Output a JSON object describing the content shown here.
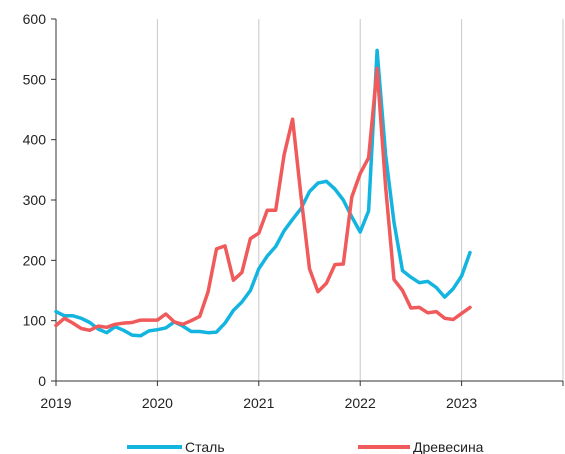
{
  "chart_data": {
    "type": "line",
    "title": "",
    "xlabel": "",
    "ylabel": "",
    "xlim": [
      2019,
      2024
    ],
    "ylim": [
      0,
      600
    ],
    "x_ticks": [
      "2019",
      "2020",
      "2021",
      "2022",
      "2023"
    ],
    "y_ticks": [
      "0",
      "100",
      "200",
      "300",
      "400",
      "500",
      "600"
    ],
    "grid": "vertical",
    "legend": "bottom",
    "series": [
      {
        "name": "Сталь",
        "color": "#13b5e0",
        "x": [
          2019.0,
          2019.083,
          2019.167,
          2019.25,
          2019.333,
          2019.417,
          2019.5,
          2019.583,
          2019.667,
          2019.75,
          2019.833,
          2019.917,
          2020.0,
          2020.083,
          2020.167,
          2020.25,
          2020.333,
          2020.417,
          2020.5,
          2020.583,
          2020.667,
          2020.75,
          2020.833,
          2020.917,
          2021.0,
          2021.083,
          2021.167,
          2021.25,
          2021.333,
          2021.417,
          2021.5,
          2021.583,
          2021.667,
          2021.75,
          2021.833,
          2021.917,
          2022.0,
          2022.083,
          2022.167,
          2022.25,
          2022.333,
          2022.417,
          2022.5,
          2022.583,
          2022.667,
          2022.75,
          2022.833,
          2022.917,
          2023.0,
          2023.083
        ],
        "y": [
          115,
          108,
          108,
          104,
          97,
          86,
          80,
          90,
          84,
          76,
          75,
          83,
          85,
          88,
          98,
          91,
          82,
          82,
          80,
          81,
          96,
          117,
          131,
          150,
          186,
          207,
          223,
          249,
          268,
          286,
          314,
          328,
          331,
          318,
          300,
          272,
          247,
          282,
          548,
          375,
          263,
          183,
          172,
          163,
          165,
          155,
          139,
          153,
          174,
          213
        ]
      },
      {
        "name": "Древесина",
        "color": "#f05a5a",
        "x": [
          2019.0,
          2019.083,
          2019.167,
          2019.25,
          2019.333,
          2019.417,
          2019.5,
          2019.583,
          2019.667,
          2019.75,
          2019.833,
          2019.917,
          2020.0,
          2020.083,
          2020.167,
          2020.25,
          2020.333,
          2020.417,
          2020.5,
          2020.583,
          2020.667,
          2020.75,
          2020.833,
          2020.917,
          2021.0,
          2021.083,
          2021.167,
          2021.25,
          2021.333,
          2021.417,
          2021.5,
          2021.583,
          2021.667,
          2021.75,
          2021.833,
          2021.917,
          2022.0,
          2022.083,
          2022.167,
          2022.25,
          2022.333,
          2022.417,
          2022.5,
          2022.583,
          2022.667,
          2022.75,
          2022.833,
          2022.917,
          2023.0,
          2023.083
        ],
        "y": [
          92,
          104,
          96,
          87,
          84,
          91,
          89,
          94,
          96,
          97,
          101,
          101,
          101,
          111,
          98,
          94,
          100,
          107,
          148,
          219,
          224,
          167,
          180,
          236,
          245,
          283,
          283,
          375,
          434,
          305,
          186,
          148,
          162,
          193,
          194,
          305,
          344,
          370,
          518,
          322,
          168,
          150,
          121,
          122,
          113,
          115,
          104,
          102,
          112,
          122
        ]
      }
    ]
  }
}
